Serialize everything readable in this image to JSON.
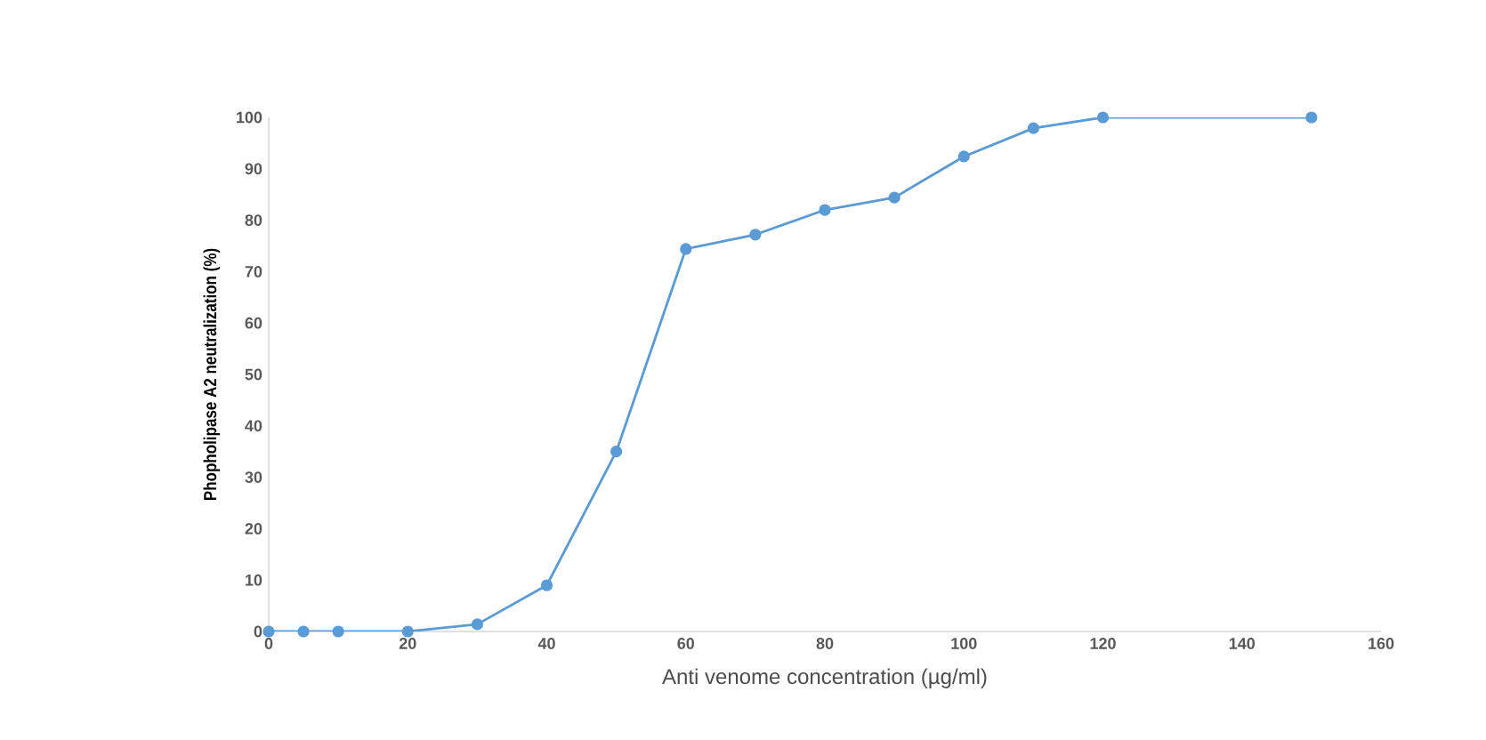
{
  "chart_data": {
    "type": "line",
    "xlabel": "Anti venome concentration (µg/ml)",
    "ylabel": "Phopholipase A2 neutralization (%)",
    "x": [
      0,
      5,
      10,
      20,
      30,
      40,
      50,
      60,
      70,
      80,
      90,
      100,
      110,
      120,
      150
    ],
    "series": [
      {
        "color": "#5b9bd5",
        "values": [
          0,
          0,
          0,
          0,
          1.4,
          9,
          35,
          74.4,
          77.2,
          82,
          84.4,
          92.4,
          97.9,
          100,
          100
        ]
      }
    ],
    "xlim": [
      0,
      160
    ],
    "xticks": [
      0,
      20,
      40,
      60,
      80,
      100,
      120,
      140,
      160
    ],
    "ylim": [
      0,
      100
    ],
    "yticks": [
      0,
      10,
      20,
      30,
      40,
      50,
      60,
      70,
      80,
      90,
      100
    ],
    "marker": "circle",
    "line_style": "solid"
  }
}
